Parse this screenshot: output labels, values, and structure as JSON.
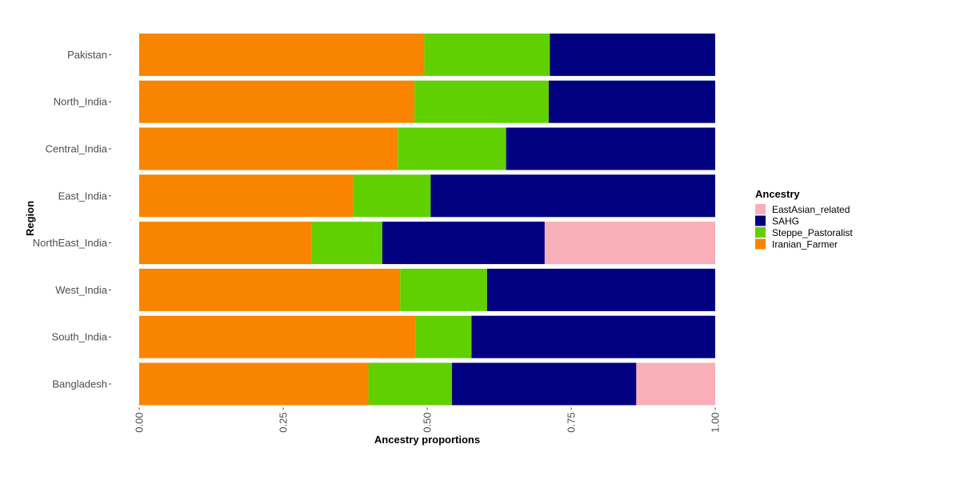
{
  "chart_data": {
    "type": "bar",
    "orientation": "horizontal",
    "stacked": true,
    "title": "",
    "xlabel": "Ancestry proportions",
    "ylabel": "Region",
    "xlim": [
      0,
      1
    ],
    "x_ticks": [
      0,
      0.25,
      0.5,
      0.75,
      1
    ],
    "x_tick_labels": [
      "0.00",
      "0.25",
      "0.50",
      "0.75",
      "1.00"
    ],
    "grid": false,
    "categories": [
      "Pakistan",
      "North_India",
      "Central_India",
      "East_India",
      "NorthEast_India",
      "West_India",
      "South_India",
      "Bangladesh"
    ],
    "series": [
      {
        "name": "Iranian_Farmer",
        "color": "#F98400",
        "values": [
          0.495,
          0.478,
          0.449,
          0.372,
          0.299,
          0.453,
          0.48,
          0.398
        ]
      },
      {
        "name": "Steppe_Pastoralist",
        "color": "#60D000",
        "values": [
          0.218,
          0.233,
          0.188,
          0.134,
          0.123,
          0.151,
          0.097,
          0.145
        ]
      },
      {
        "name": "SAHG",
        "color": "#000080",
        "values": [
          0.287,
          0.289,
          0.363,
          0.494,
          0.282,
          0.396,
          0.423,
          0.32
        ]
      },
      {
        "name": "EastAsian_related",
        "color": "#F8AFB8",
        "values": [
          0,
          0,
          0,
          0,
          0.296,
          0,
          0,
          0.137
        ]
      }
    ],
    "legend": {
      "title": "Ancestry",
      "position": "right",
      "order": [
        "EastAsian_related",
        "SAHG",
        "Steppe_Pastoralist",
        "Iranian_Farmer"
      ]
    }
  }
}
